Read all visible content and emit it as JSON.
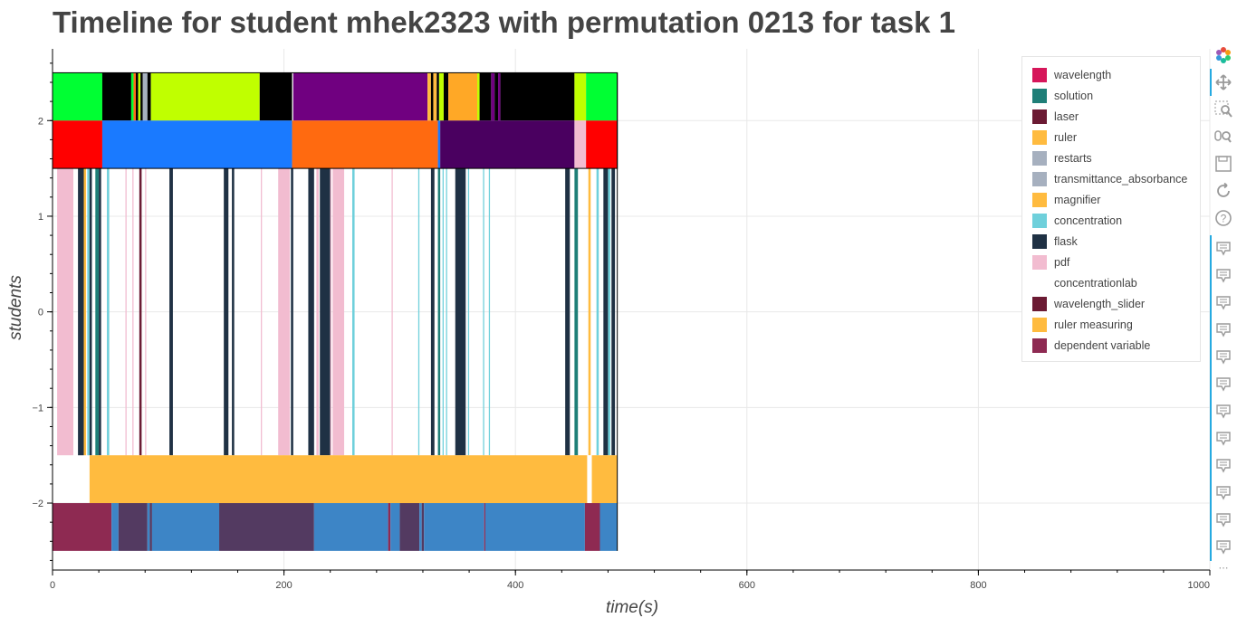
{
  "title": "Timeline for student mhek2323 with permutation 0213 for task 1",
  "chart_data": {
    "type": "timeline",
    "title": "Timeline for student mhek2323 with permutation 0213 for task 1",
    "xlabel": "time(s)",
    "ylabel": "students",
    "xlim": [
      0,
      1000
    ],
    "ylim": [
      -2.7,
      2.75
    ],
    "x_ticks": [
      0,
      200,
      400,
      600,
      800,
      1000
    ],
    "y_ticks": [
      -2,
      -1,
      0,
      1,
      2
    ],
    "y_tick_labels": [
      "−2",
      "−1",
      "0",
      "1",
      "2"
    ],
    "grid": true,
    "legend_position": "top-right",
    "legend": [
      {
        "name": "wavelength",
        "color": "#d6165a"
      },
      {
        "name": "solution",
        "color": "#1f7f78"
      },
      {
        "name": "laser",
        "color": "#6b1a33"
      },
      {
        "name": "ruler",
        "color": "#ffbb3f"
      },
      {
        "name": "restarts",
        "color": "#a6b0bf"
      },
      {
        "name": "transmittance_absorbance",
        "color": "#a6b0bf"
      },
      {
        "name": "magnifier",
        "color": "#ffbb3f"
      },
      {
        "name": "concentration",
        "color": "#6fd0db"
      },
      {
        "name": "flask",
        "color": "#1f3144"
      },
      {
        "name": "pdf",
        "color": "#f2bcd0"
      },
      {
        "name": "concentrationlab",
        "color": "#ffffff"
      },
      {
        "name": "wavelength_slider",
        "color": "#6b1a33"
      },
      {
        "name": "ruler measuring",
        "color": "#ffbb3f"
      },
      {
        "name": "dependent variable",
        "color": "#8e2a52"
      }
    ],
    "rows": [
      {
        "y0": 2.0,
        "y1": 2.5,
        "segments": [
          {
            "start": 0,
            "end": 43,
            "color": "#00ff33"
          },
          {
            "start": 43,
            "end": 68,
            "color": "#000000"
          },
          {
            "start": 68,
            "end": 70,
            "color": "#00ff33"
          },
          {
            "start": 70,
            "end": 72,
            "color": "#ff6a1a"
          },
          {
            "start": 72,
            "end": 74,
            "color": "#000000"
          },
          {
            "start": 74,
            "end": 76,
            "color": "#c0ff00"
          },
          {
            "start": 76,
            "end": 78,
            "color": "#000000"
          },
          {
            "start": 78,
            "end": 82,
            "color": "#a6b0bf"
          },
          {
            "start": 82,
            "end": 85,
            "color": "#000000"
          },
          {
            "start": 85,
            "end": 179,
            "color": "#c0ff00"
          },
          {
            "start": 179,
            "end": 207,
            "color": "#000000"
          },
          {
            "start": 207,
            "end": 208,
            "color": "#ffffff"
          },
          {
            "start": 208,
            "end": 324,
            "color": "#700080"
          },
          {
            "start": 324,
            "end": 327,
            "color": "#ffbb3f"
          },
          {
            "start": 327,
            "end": 329,
            "color": "#000000"
          },
          {
            "start": 329,
            "end": 332,
            "color": "#ffbb3f"
          },
          {
            "start": 332,
            "end": 334,
            "color": "#000000"
          },
          {
            "start": 334,
            "end": 338,
            "color": "#c0ff00"
          },
          {
            "start": 338,
            "end": 342,
            "color": "#000000"
          },
          {
            "start": 342,
            "end": 367,
            "color": "#ffa826"
          },
          {
            "start": 367,
            "end": 369,
            "color": "#c0ff00"
          },
          {
            "start": 369,
            "end": 379,
            "color": "#000000"
          },
          {
            "start": 379,
            "end": 382,
            "color": "#700080"
          },
          {
            "start": 382,
            "end": 385,
            "color": "#000000"
          },
          {
            "start": 385,
            "end": 387,
            "color": "#700080"
          },
          {
            "start": 387,
            "end": 451,
            "color": "#000000"
          },
          {
            "start": 451,
            "end": 461,
            "color": "#c0ff00"
          },
          {
            "start": 461,
            "end": 488,
            "color": "#00ff33"
          }
        ]
      },
      {
        "y0": 1.5,
        "y1": 2.0,
        "segments": [
          {
            "start": 0,
            "end": 43,
            "color": "#ff0000"
          },
          {
            "start": 43,
            "end": 207,
            "color": "#1a7aff"
          },
          {
            "start": 207,
            "end": 333,
            "color": "#ff6a10"
          },
          {
            "start": 333,
            "end": 335,
            "color": "#1a7aff"
          },
          {
            "start": 335,
            "end": 451,
            "color": "#4a0060"
          },
          {
            "start": 451,
            "end": 461,
            "color": "#f2bcd0"
          },
          {
            "start": 461,
            "end": 488,
            "color": "#ff0000"
          }
        ]
      },
      {
        "y0": -1.5,
        "y1": 1.5,
        "segments": [
          {
            "start": 4,
            "end": 18,
            "color": "#f2bcd0"
          },
          {
            "start": 22,
            "end": 27,
            "color": "#1f3144"
          },
          {
            "start": 27,
            "end": 29,
            "color": "#ffbb3f"
          },
          {
            "start": 30,
            "end": 32,
            "color": "#6fd0db"
          },
          {
            "start": 32,
            "end": 34,
            "color": "#1f3144"
          },
          {
            "start": 37,
            "end": 40,
            "color": "#1f7f78"
          },
          {
            "start": 40,
            "end": 42,
            "color": "#1f3144"
          },
          {
            "start": 47,
            "end": 49,
            "color": "#6fd0db"
          },
          {
            "start": 63,
            "end": 64,
            "color": "#f2bcd0"
          },
          {
            "start": 69,
            "end": 70,
            "color": "#f2bcd0"
          },
          {
            "start": 75,
            "end": 77,
            "color": "#6b1a33"
          },
          {
            "start": 80,
            "end": 81,
            "color": "#f2bcd0"
          },
          {
            "start": 101,
            "end": 104,
            "color": "#1f3144"
          },
          {
            "start": 148,
            "end": 152,
            "color": "#1f3144"
          },
          {
            "start": 155,
            "end": 157,
            "color": "#1f3144"
          },
          {
            "start": 180,
            "end": 181,
            "color": "#f2bcd0"
          },
          {
            "start": 195,
            "end": 205,
            "color": "#f2bcd0"
          },
          {
            "start": 206,
            "end": 208,
            "color": "#1f3144"
          },
          {
            "start": 221,
            "end": 226,
            "color": "#1f3144"
          },
          {
            "start": 228,
            "end": 230,
            "color": "#f2bcd0"
          },
          {
            "start": 231,
            "end": 240,
            "color": "#1f3144"
          },
          {
            "start": 240,
            "end": 241,
            "color": "#f2bcd0"
          },
          {
            "start": 242,
            "end": 252,
            "color": "#f2bcd0"
          },
          {
            "start": 259,
            "end": 261,
            "color": "#6fd0db"
          },
          {
            "start": 293,
            "end": 294,
            "color": "#f2bcd0"
          },
          {
            "start": 316,
            "end": 317,
            "color": "#6fd0db"
          },
          {
            "start": 327,
            "end": 330,
            "color": "#1f3144"
          },
          {
            "start": 333,
            "end": 335,
            "color": "#1f7f78"
          },
          {
            "start": 337,
            "end": 338,
            "color": "#6fd0db"
          },
          {
            "start": 340,
            "end": 341,
            "color": "#6fd0db"
          },
          {
            "start": 348,
            "end": 357,
            "color": "#1f3144"
          },
          {
            "start": 359,
            "end": 360,
            "color": "#6fd0db"
          },
          {
            "start": 372,
            "end": 373,
            "color": "#6fd0db"
          },
          {
            "start": 377,
            "end": 378,
            "color": "#6fd0db"
          },
          {
            "start": 443,
            "end": 447,
            "color": "#1f3144"
          },
          {
            "start": 451,
            "end": 454,
            "color": "#1f7f78"
          },
          {
            "start": 463,
            "end": 465,
            "color": "#ffbb3f"
          },
          {
            "start": 470,
            "end": 472,
            "color": "#6fd0db"
          },
          {
            "start": 476,
            "end": 480,
            "color": "#1f3144"
          },
          {
            "start": 480,
            "end": 482,
            "color": "#6fd0db"
          },
          {
            "start": 483,
            "end": 486,
            "color": "#1f3144"
          }
        ]
      },
      {
        "y0": -2.0,
        "y1": -1.5,
        "segments": [
          {
            "start": 32,
            "end": 462,
            "color": "#ffbb3f"
          },
          {
            "start": 462,
            "end": 466,
            "color": "#ffffff"
          },
          {
            "start": 466,
            "end": 488,
            "color": "#ffbb3f"
          }
        ]
      },
      {
        "y0": -2.5,
        "y1": -2.0,
        "segments": [
          {
            "start": 0,
            "end": 51,
            "color": "#8e2a52"
          },
          {
            "start": 51,
            "end": 57,
            "color": "#3d85c6"
          },
          {
            "start": 57,
            "end": 82,
            "color": "#533a61"
          },
          {
            "start": 82,
            "end": 84,
            "color": "#3d85c6"
          },
          {
            "start": 84,
            "end": 86,
            "color": "#533a61"
          },
          {
            "start": 86,
            "end": 144,
            "color": "#3d85c6"
          },
          {
            "start": 144,
            "end": 226,
            "color": "#533a61"
          },
          {
            "start": 226,
            "end": 290,
            "color": "#3d85c6"
          },
          {
            "start": 290,
            "end": 292,
            "color": "#8e2a52"
          },
          {
            "start": 292,
            "end": 300,
            "color": "#3d85c6"
          },
          {
            "start": 300,
            "end": 317,
            "color": "#533a61"
          },
          {
            "start": 317,
            "end": 319,
            "color": "#3d85c6"
          },
          {
            "start": 319,
            "end": 321,
            "color": "#533a61"
          },
          {
            "start": 321,
            "end": 373,
            "color": "#3d85c6"
          },
          {
            "start": 373,
            "end": 374,
            "color": "#8e2a52"
          },
          {
            "start": 374,
            "end": 460,
            "color": "#3d85c6"
          },
          {
            "start": 460,
            "end": 473,
            "color": "#8e2a52"
          },
          {
            "start": 473,
            "end": 488,
            "color": "#3d85c6"
          }
        ]
      }
    ]
  },
  "toolbar": {
    "tools": [
      {
        "icon": "bokeh-logo-icon"
      },
      {
        "icon": "pan-icon"
      },
      {
        "icon": "box-zoom-icon"
      },
      {
        "icon": "wheel-zoom-icon"
      },
      {
        "icon": "save-icon"
      },
      {
        "icon": "reset-icon"
      },
      {
        "icon": "help-icon"
      },
      {
        "icon": "hover-icon"
      }
    ]
  }
}
